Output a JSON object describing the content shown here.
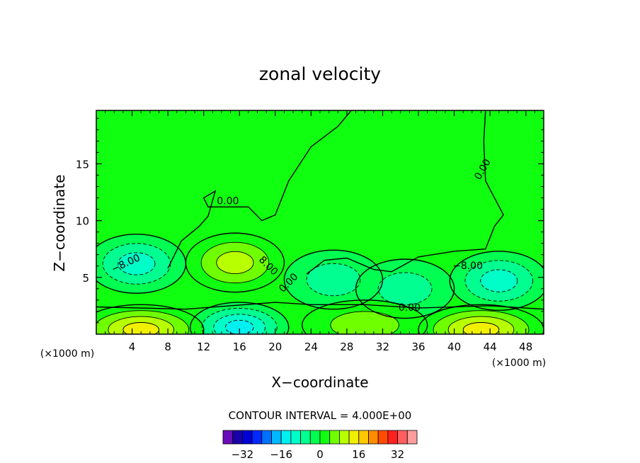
{
  "chart_data": {
    "type": "heatmap",
    "title": "zonal velocity",
    "xlabel": "X−coordinate",
    "ylabel": "Z−coordinate",
    "x_unit_left": "(×1000 m)",
    "x_unit_right": "(×1000 m)",
    "xlim": [
      0,
      50
    ],
    "ylim": [
      0,
      19.7
    ],
    "x_ticks": [
      4,
      8,
      12,
      16,
      20,
      24,
      28,
      32,
      36,
      40,
      44,
      48
    ],
    "y_ticks": [
      5,
      10,
      15
    ],
    "contour_interval_text": "CONTOUR INTERVAL = 4.000E+00",
    "contour_interval": 4,
    "contour_labels": [
      "0.00",
      "0.00",
      "0.00",
      "0.00",
      "−8.00",
      "−8.00",
      "8.00"
    ],
    "field_features": [
      {
        "kind": "max",
        "x": 15.5,
        "z": 6.3,
        "value": 11
      },
      {
        "kind": "min",
        "x": 4.5,
        "z": 6.2,
        "value": -11
      },
      {
        "kind": "min",
        "x": 16,
        "z": 0.6,
        "value": -13
      },
      {
        "kind": "min",
        "x": 45,
        "z": 4.7,
        "value": -11
      },
      {
        "kind": "min",
        "x": 26.5,
        "z": 4.8,
        "value": -6
      },
      {
        "kind": "min",
        "x": 34.5,
        "z": 4.0,
        "value": -5
      },
      {
        "kind": "max",
        "x": 5,
        "z": 0.4,
        "value": 13
      },
      {
        "kind": "max",
        "x": 43,
        "z": 0.4,
        "value": 13
      },
      {
        "kind": "max",
        "x": 30,
        "z": 0.8,
        "value": 5
      }
    ],
    "colorbar": {
      "colors": [
        "#6a0cb8",
        "#1a00a8",
        "#0000d8",
        "#0028ff",
        "#0070ff",
        "#00b8ff",
        "#00f0f0",
        "#00ffc8",
        "#00ff90",
        "#00ff50",
        "#10ff10",
        "#70ff00",
        "#b8ff00",
        "#f0f000",
        "#ffc800",
        "#ff8c00",
        "#ff4a00",
        "#ff2020",
        "#ff5e5e",
        "#ff9c9c"
      ],
      "boundaries": [
        -40,
        -36,
        -32,
        -28,
        -24,
        -20,
        -16,
        -12,
        -8,
        -4,
        0,
        4,
        8,
        12,
        16,
        20,
        24,
        28,
        32,
        36,
        40
      ],
      "tick_labels": [
        "−32",
        "−16",
        "0",
        "16",
        "32"
      ],
      "tick_values": [
        -32,
        -16,
        0,
        16,
        32
      ]
    }
  }
}
